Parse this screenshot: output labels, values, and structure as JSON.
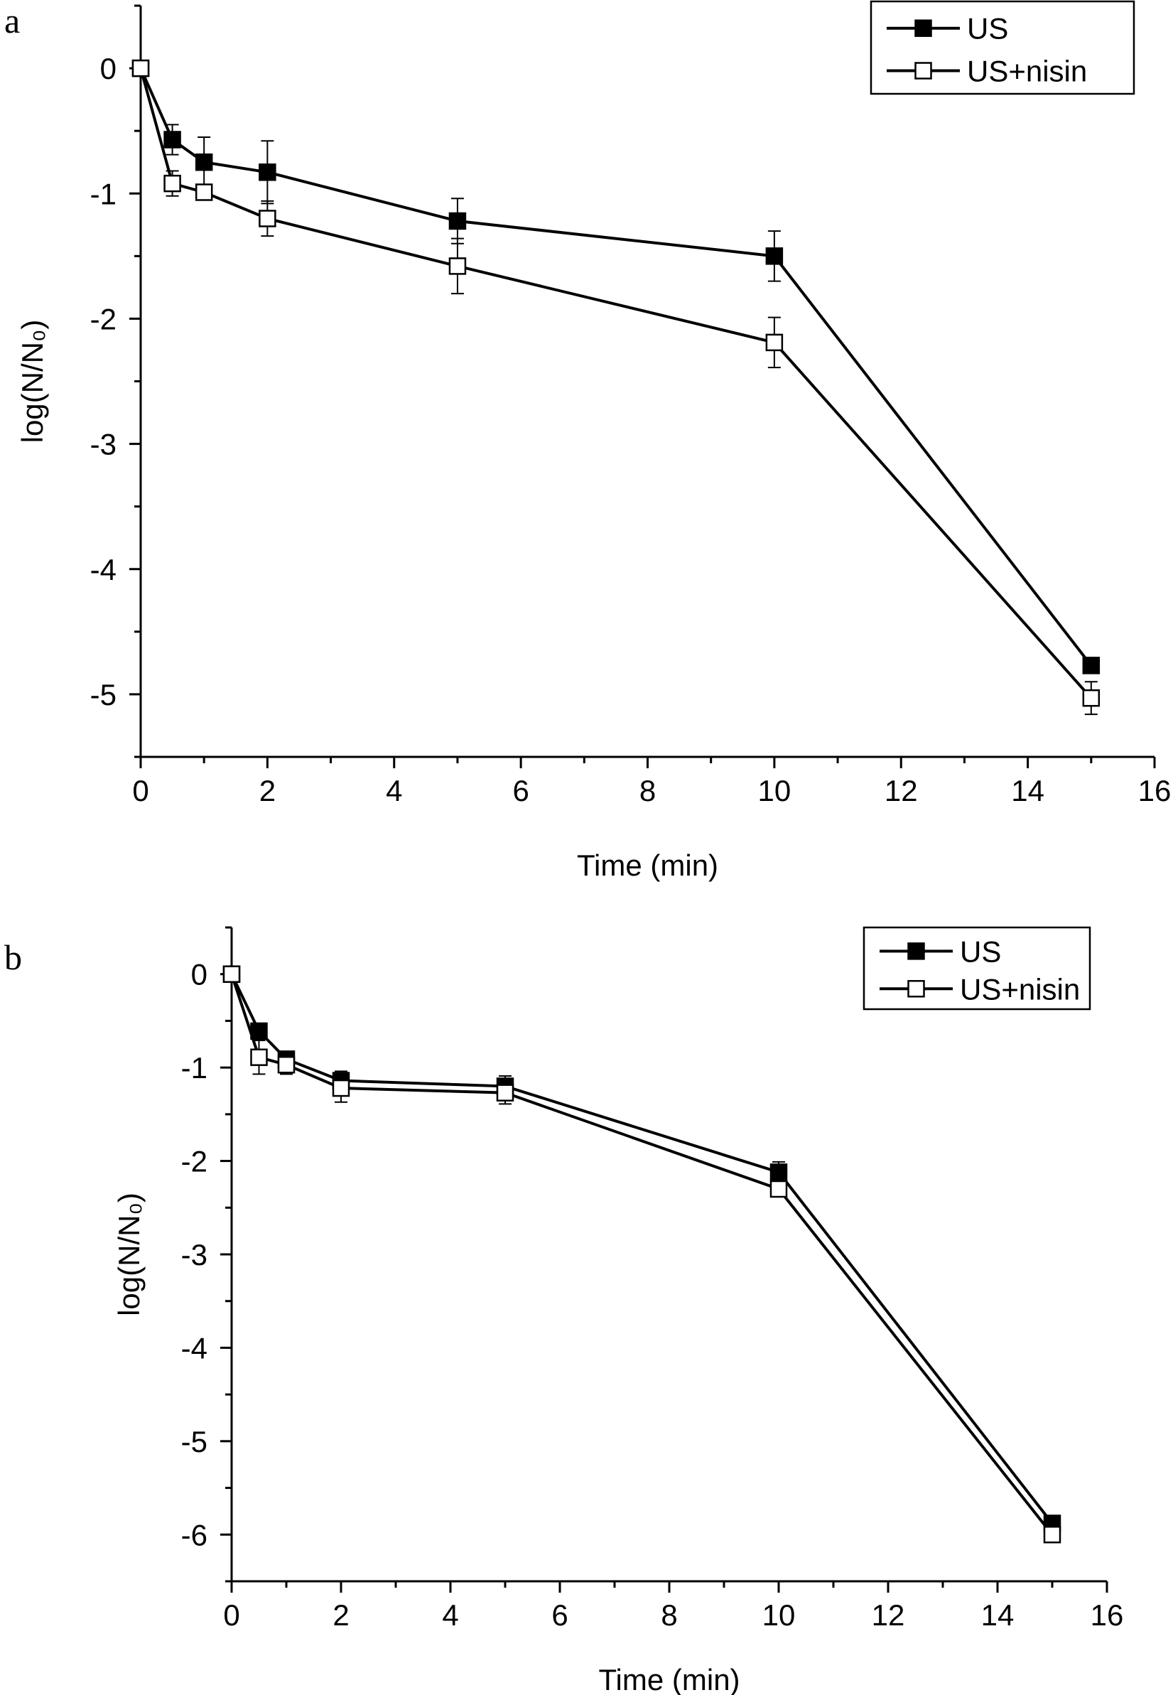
{
  "chart_data": [
    {
      "panel": "a",
      "type": "line",
      "xlabel": "Time (min)",
      "ylabel": "log(N/N₀)",
      "xlim": [
        0,
        16
      ],
      "ylim": [
        -5.5,
        0.5
      ],
      "xticks": [
        0,
        2,
        4,
        6,
        8,
        10,
        12,
        14,
        16
      ],
      "yticks": [
        0,
        -1,
        -2,
        -3,
        -4,
        -5
      ],
      "x": [
        0,
        0.5,
        1,
        2,
        5,
        10,
        15
      ],
      "legend_position": "top-right",
      "series": [
        {
          "name": "US",
          "marker": "filled-square",
          "values": [
            0,
            -0.57,
            -0.75,
            -0.83,
            -1.22,
            -1.5,
            -4.77
          ],
          "errors": [
            0,
            0.12,
            0.2,
            0.25,
            0.18,
            0.2,
            0.06
          ]
        },
        {
          "name": "US+nisin",
          "marker": "open-square",
          "values": [
            0,
            -0.92,
            -0.99,
            -1.2,
            -1.58,
            -2.19,
            -5.03
          ],
          "errors": [
            0,
            0.1,
            0.06,
            0.14,
            0.22,
            0.2,
            0.13
          ]
        }
      ]
    },
    {
      "panel": "b",
      "type": "line",
      "xlabel": "Time (min)",
      "ylabel": "log(N/N₀)",
      "xlim": [
        0,
        16
      ],
      "ylim": [
        -6.5,
        0.5
      ],
      "xticks": [
        0,
        2,
        4,
        6,
        8,
        10,
        12,
        14,
        16
      ],
      "yticks": [
        0,
        -1,
        -2,
        -3,
        -4,
        -5,
        -6
      ],
      "x": [
        0,
        0.5,
        1,
        2,
        5,
        10,
        15
      ],
      "legend_position": "top-right",
      "series": [
        {
          "name": "US",
          "marker": "filled-square",
          "values": [
            0,
            -0.61,
            -0.91,
            -1.14,
            -1.2,
            -2.12,
            -5.88
          ],
          "errors": [
            0,
            0.06,
            0.06,
            0.1,
            0.11,
            0.11,
            0.06
          ]
        },
        {
          "name": "US+nisin",
          "marker": "open-square",
          "values": [
            0,
            -0.89,
            -0.97,
            -1.22,
            -1.27,
            -2.3,
            -6.0
          ],
          "errors": [
            0,
            0.18,
            0.1,
            0.15,
            0.12,
            0.08,
            0.04
          ]
        }
      ]
    }
  ]
}
